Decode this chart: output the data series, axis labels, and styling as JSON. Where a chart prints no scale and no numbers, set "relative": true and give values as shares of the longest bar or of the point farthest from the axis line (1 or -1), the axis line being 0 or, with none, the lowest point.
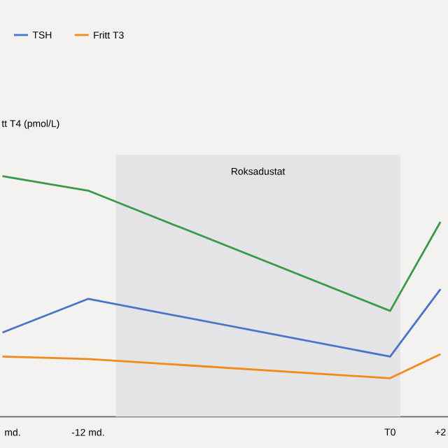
{
  "chart_data": {
    "type": "line",
    "relative": true,
    "ylabel": "tt T4 (pmol/L)",
    "x": [
      -15.4,
      -12,
      0,
      2
    ],
    "xlim": [
      -15.5,
      2.3
    ],
    "xticks": [
      {
        "value": -15,
        "label": "md."
      },
      {
        "value": -12,
        "label": "-12 md."
      },
      {
        "value": 0,
        "label": "T0"
      },
      {
        "value": 2,
        "label": "+2"
      }
    ],
    "series": [
      {
        "color": "#3a9a4a",
        "values": [
          1,
          0.94,
          0.44,
          0.81
        ]
      },
      {
        "name": "TSH",
        "color": "#4a74c8",
        "values": [
          0.35,
          0.49,
          0.25,
          0.53
        ]
      },
      {
        "name": "Fritt T3",
        "color": "#f28a1a",
        "values": [
          0.25,
          0.24,
          0.16,
          0.26
        ]
      }
    ],
    "bands": [
      {
        "axis": "x",
        "from": -10.9,
        "to": 0.4,
        "label": "Roksadustat",
        "color": "#e4e4e7"
      }
    ],
    "legend": "top left"
  }
}
